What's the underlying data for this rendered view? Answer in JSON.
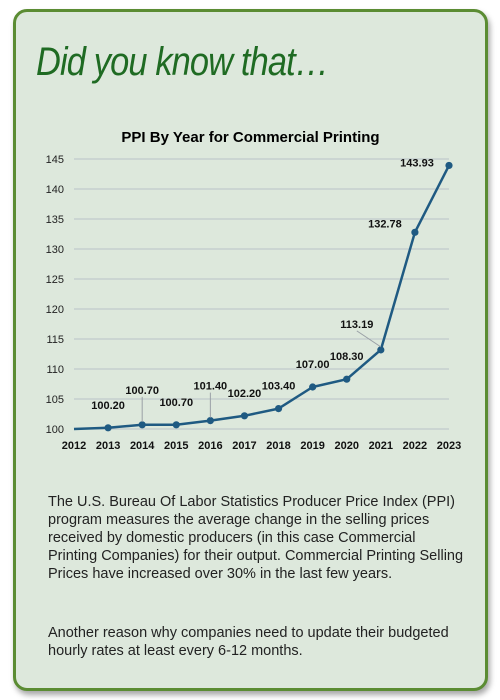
{
  "card": {
    "headline": "Did you know that…",
    "paragraph1": "The U.S. Bureau Of Labor Statistics Producer Price Index (PPI) program measures the average change in the selling prices received by domestic producers (in this case Commercial Printing Companies) for their output. Commercial Printing Selling Prices have increased over 30% in the last few years.",
    "paragraph2": "Another reason why companies need to update their budgeted hourly rates at least every 6-12 months."
  },
  "colors": {
    "line": "#1f5a82",
    "grid": "#b9c2c8",
    "border": "#5b8c33",
    "headline": "#1f6b23",
    "background": "#dde8dc"
  },
  "chart_data": {
    "type": "line",
    "title": "PPI By Year for Commercial Printing",
    "x": [
      "2012",
      "2013",
      "2014",
      "2015",
      "2016",
      "2017",
      "2018",
      "2019",
      "2020",
      "2021",
      "2022",
      "2023"
    ],
    "series": [
      {
        "values": [
          100.0,
          100.2,
          100.7,
          100.7,
          101.4,
          102.2,
          103.4,
          107.0,
          108.3,
          113.19,
          132.78,
          143.93
        ]
      }
    ],
    "labels": [
      null,
      "100.20",
      "100.70",
      "100.70",
      "101.40",
      "102.20",
      "103.40",
      "107.00",
      "108.30",
      "113.19",
      "132.78",
      "143.93"
    ],
    "ylim": [
      100,
      145
    ],
    "yticks": [
      100,
      105,
      110,
      115,
      120,
      125,
      130,
      135,
      140,
      145
    ],
    "grid": "horizontal",
    "legend": "none"
  }
}
